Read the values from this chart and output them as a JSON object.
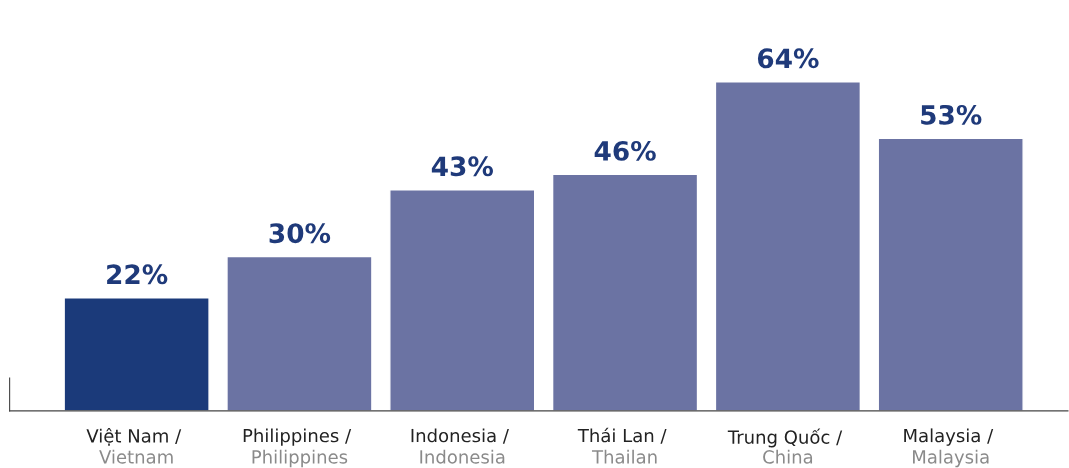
{
  "chart_data": {
    "type": "bar",
    "categories": [
      "Việt Nam / \nVietnam",
      "Philippines / \nPhilippines",
      "Indonesia / \nIndonesia",
      "Thái Lan / \nThailan",
      "Trung Quốc / \nChina",
      "Malaysia / \nMalaysia"
    ],
    "values": [
      22,
      30,
      43,
      46,
      64,
      53
    ],
    "colors": [
      "#1b3a7a",
      "#6b73a3",
      "#6b73a3",
      "#6b73a3",
      "#6b73a3",
      "#6b73a3"
    ],
    "value_labels": [
      "22%",
      "30%",
      "43%",
      "46%",
      "64%",
      "53%"
    ],
    "data_labels": false
  }
}
